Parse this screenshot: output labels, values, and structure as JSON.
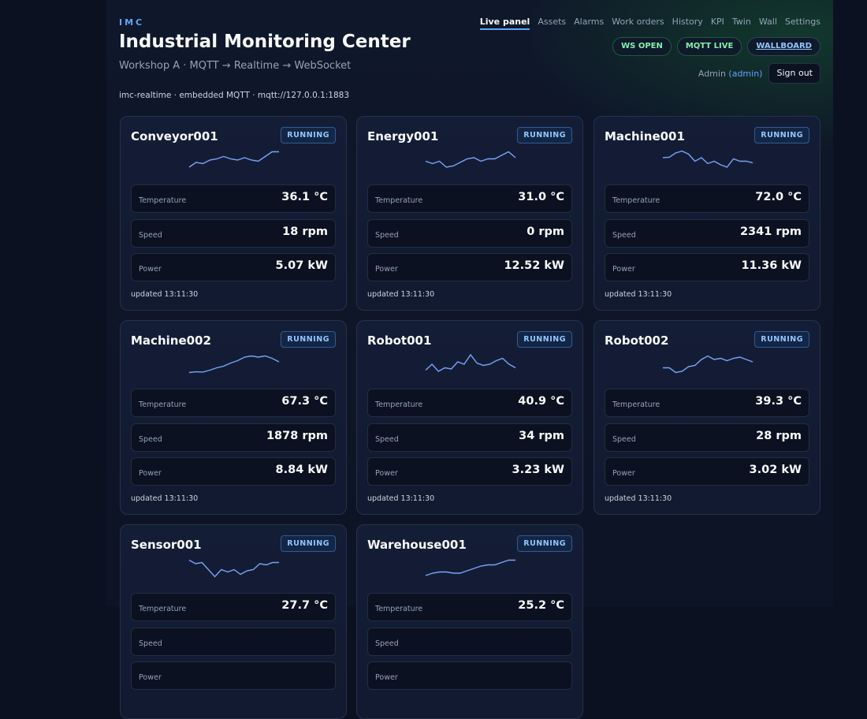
{
  "header": {
    "brand": "IMC",
    "title": "Industrial Monitoring Center",
    "subtitle": "Workshop A · MQTT → Realtime → WebSocket",
    "runtime": "imc-realtime · embedded MQTT · mqtt://127.0.0.1:1883"
  },
  "nav": [
    "Live panel",
    "Assets",
    "Alarms",
    "Work orders",
    "History",
    "KPI",
    "Twin",
    "Wall",
    "Settings"
  ],
  "pills": {
    "ws": "WS OPEN",
    "mqtt": "MQTT LIVE",
    "wallboard": "WALLBOARD"
  },
  "user": {
    "name": "Admin",
    "role": "(admin)",
    "signout": "Sign out"
  },
  "labels": {
    "temperature": "Temperature",
    "speed": "Speed",
    "power": "Power"
  },
  "colors": {
    "accent": "#60a5fa",
    "live_green": "#86efac",
    "running_blue": "#93c5fd"
  },
  "devices": [
    {
      "name": "Conveyor001",
      "status": "RUNNING",
      "temperature": "36.1 °C",
      "speed": "18 rpm",
      "power": "5.07 kW",
      "updated": "updated 13:11:30",
      "trend": [
        0.2,
        0.4,
        0.35,
        0.5,
        0.55,
        0.65,
        0.55,
        0.5,
        0.6,
        0.5,
        0.45,
        0.65,
        0.85,
        0.85
      ]
    },
    {
      "name": "Energy001",
      "status": "RUNNING",
      "temperature": "31.0 °C",
      "speed": "0 rpm",
      "power": "12.52 kW",
      "updated": "updated 13:11:30",
      "trend": [
        0.45,
        0.35,
        0.45,
        0.2,
        0.25,
        0.4,
        0.55,
        0.6,
        0.45,
        0.55,
        0.55,
        0.7,
        0.85,
        0.6
      ]
    },
    {
      "name": "Machine001",
      "status": "RUNNING",
      "temperature": "72.0 °C",
      "speed": "2341 rpm",
      "power": "11.36 kW",
      "updated": "updated 13:11:30",
      "trend": [
        0.6,
        0.62,
        0.8,
        0.88,
        0.75,
        0.45,
        0.6,
        0.35,
        0.45,
        0.3,
        0.2,
        0.55,
        0.45,
        0.45,
        0.38
      ]
    },
    {
      "name": "Machine002",
      "status": "RUNNING",
      "temperature": "67.3 °C",
      "speed": "1878 rpm",
      "power": "8.84 kW",
      "updated": "updated 13:11:30",
      "trend": [
        0.15,
        0.18,
        0.17,
        0.25,
        0.35,
        0.42,
        0.55,
        0.65,
        0.8,
        0.85,
        0.8,
        0.85,
        0.75,
        0.6
      ]
    },
    {
      "name": "Robot001",
      "status": "RUNNING",
      "temperature": "40.9 °C",
      "speed": "34 rpm",
      "power": "3.23 kW",
      "updated": "updated 13:11:30",
      "trend": [
        0.25,
        0.5,
        0.2,
        0.35,
        0.3,
        0.6,
        0.5,
        0.9,
        0.55,
        0.45,
        0.5,
        0.65,
        0.75,
        0.5,
        0.35
      ]
    },
    {
      "name": "Robot002",
      "status": "RUNNING",
      "temperature": "39.3 °C",
      "speed": "28 rpm",
      "power": "3.02 kW",
      "updated": "updated 13:11:30",
      "trend": [
        0.35,
        0.35,
        0.15,
        0.2,
        0.4,
        0.45,
        0.7,
        0.85,
        0.7,
        0.75,
        0.65,
        0.75,
        0.8,
        0.7,
        0.6
      ]
    },
    {
      "name": "Sensor001",
      "status": "RUNNING",
      "temperature": "27.7 °C",
      "speed": "",
      "power": "",
      "updated": "",
      "trend": [
        0.85,
        0.7,
        0.75,
        0.45,
        0.15,
        0.45,
        0.35,
        0.45,
        0.25,
        0.4,
        0.45,
        0.7,
        0.65,
        0.75,
        0.75
      ]
    },
    {
      "name": "Warehouse001",
      "status": "RUNNING",
      "temperature": "25.2 °C",
      "speed": "",
      "power": "",
      "updated": "",
      "trend": [
        0.2,
        0.3,
        0.35,
        0.35,
        0.3,
        0.3,
        0.4,
        0.5,
        0.6,
        0.65,
        0.65,
        0.75,
        0.85,
        0.85
      ]
    }
  ]
}
